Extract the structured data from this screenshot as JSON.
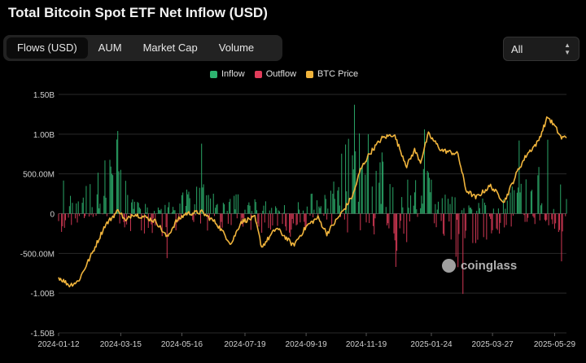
{
  "title": "Total Bitcoin Spot ETF Net Inflow (USD)",
  "tabs": [
    {
      "label": "Flows (USD)",
      "active": true
    },
    {
      "label": "AUM",
      "active": false
    },
    {
      "label": "Market Cap",
      "active": false
    },
    {
      "label": "Volume",
      "active": false
    }
  ],
  "range_select": {
    "value": "All"
  },
  "watermark": "coinglass",
  "colors": {
    "inflow": "#2db36f",
    "outflow": "#e03c5a",
    "btc_price": "#f0b43c",
    "grid": "#2a2a2a"
  },
  "chart_data": {
    "type": "bar",
    "legend": [
      {
        "name": "Inflow",
        "color": "#2db36f"
      },
      {
        "name": "Outflow",
        "color": "#e03c5a"
      },
      {
        "name": "BTC Price",
        "color": "#f0b43c"
      }
    ],
    "legend_position": "top-center",
    "y_ticks": [
      "1.50B",
      "1.00B",
      "500.00M",
      "0",
      "-500.00M",
      "-1.00B",
      "-1.50B"
    ],
    "y_tick_values": [
      1500000000,
      1000000000,
      500000000,
      0,
      -500000000,
      -1000000000,
      -1500000000
    ],
    "ylim": [
      -1500000000,
      1500000000
    ],
    "x_ticks": [
      "2024-01-12",
      "2024-03-15",
      "2024-05-16",
      "2024-07-19",
      "2024-09-19",
      "2024-11-19",
      "2025-01-24",
      "2025-03-27",
      "2025-05-29"
    ],
    "x_range": [
      "2024-01-12",
      "2025-06-10"
    ],
    "grid": true,
    "flow_knots": [
      [
        "2024-01-12",
        600000000
      ],
      [
        "2024-01-25",
        250000000
      ],
      [
        "2024-02-15",
        450000000
      ],
      [
        "2024-02-28",
        650000000
      ],
      [
        "2024-03-12",
        1000000000
      ],
      [
        "2024-03-25",
        200000000
      ],
      [
        "2024-04-05",
        150000000
      ],
      [
        "2024-04-25",
        100000000
      ],
      [
        "2024-05-15",
        250000000
      ],
      [
        "2024-05-25",
        350000000
      ],
      [
        "2024-06-05",
        850000000
      ],
      [
        "2024-06-20",
        120000000
      ],
      [
        "2024-07-15",
        300000000
      ],
      [
        "2024-07-25",
        250000000
      ],
      [
        "2024-08-10",
        150000000
      ],
      [
        "2024-09-01",
        100000000
      ],
      [
        "2024-09-20",
        300000000
      ],
      [
        "2024-10-10",
        250000000
      ],
      [
        "2024-10-25",
        800000000
      ],
      [
        "2024-11-10",
        1200000000
      ],
      [
        "2024-11-25",
        700000000
      ],
      [
        "2024-12-10",
        800000000
      ],
      [
        "2025-01-05",
        500000000
      ],
      [
        "2025-01-20",
        600000000
      ],
      [
        "2025-02-05",
        300000000
      ],
      [
        "2025-03-01",
        150000000
      ],
      [
        "2025-03-20",
        200000000
      ],
      [
        "2025-04-05",
        150000000
      ],
      [
        "2025-04-25",
        650000000
      ],
      [
        "2025-05-15",
        600000000
      ],
      [
        "2025-06-10",
        350000000
      ]
    ],
    "outflow_knots": [
      [
        "2024-01-12",
        -250000000
      ],
      [
        "2024-02-01",
        -120000000
      ],
      [
        "2024-03-01",
        -60000000
      ],
      [
        "2024-03-20",
        -250000000
      ],
      [
        "2024-04-15",
        -250000000
      ],
      [
        "2024-05-01",
        -450000000
      ],
      [
        "2024-05-20",
        -100000000
      ],
      [
        "2024-06-15",
        -250000000
      ],
      [
        "2024-07-05",
        -150000000
      ],
      [
        "2024-08-01",
        -250000000
      ],
      [
        "2024-08-20",
        -200000000
      ],
      [
        "2024-09-05",
        -300000000
      ],
      [
        "2024-10-01",
        -100000000
      ],
      [
        "2024-11-01",
        -300000000
      ],
      [
        "2024-11-20",
        -200000000
      ],
      [
        "2024-12-20",
        -500000000
      ],
      [
        "2025-01-10",
        -350000000
      ],
      [
        "2025-02-05",
        -300000000
      ],
      [
        "2025-02-25",
        -800000000
      ],
      [
        "2025-03-10",
        -400000000
      ],
      [
        "2025-04-05",
        -250000000
      ],
      [
        "2025-04-25",
        -100000000
      ],
      [
        "2025-05-15",
        -200000000
      ],
      [
        "2025-06-10",
        -300000000
      ]
    ],
    "flow_peaks": [
      [
        "2024-03-12",
        1040000000
      ],
      [
        "2024-06-05",
        880000000
      ],
      [
        "2024-11-07",
        1370000000
      ],
      [
        "2024-11-21",
        1000000000
      ],
      [
        "2024-12-05",
        770000000
      ],
      [
        "2025-01-17",
        1060000000
      ],
      [
        "2025-04-23",
        920000000
      ],
      [
        "2025-05-22",
        930000000
      ],
      [
        "2024-10-29",
        870000000
      ],
      [
        "2024-02-28",
        670000000
      ]
    ],
    "outflow_peaks": [
      [
        "2025-02-25",
        -1010000000
      ],
      [
        "2024-12-19",
        -670000000
      ],
      [
        "2024-05-01",
        -560000000
      ],
      [
        "2025-06-05",
        -600000000
      ],
      [
        "2024-09-03",
        -290000000
      ],
      [
        "2025-03-10",
        -370000000
      ],
      [
        "2024-08-05",
        -240000000
      ]
    ],
    "btc_price_points": [
      [
        "2024-01-12",
        -800000000
      ],
      [
        "2024-01-23",
        -900000000
      ],
      [
        "2024-02-01",
        -850000000
      ],
      [
        "2024-02-15",
        -500000000
      ],
      [
        "2024-02-28",
        -150000000
      ],
      [
        "2024-03-13",
        50000000
      ],
      [
        "2024-03-20",
        -100000000
      ],
      [
        "2024-03-27",
        0
      ],
      [
        "2024-04-10",
        -50000000
      ],
      [
        "2024-04-20",
        -100000000
      ],
      [
        "2024-05-01",
        -300000000
      ],
      [
        "2024-05-10",
        -100000000
      ],
      [
        "2024-05-20",
        0
      ],
      [
        "2024-06-05",
        20000000
      ],
      [
        "2024-06-20",
        -120000000
      ],
      [
        "2024-07-05",
        -380000000
      ],
      [
        "2024-07-15",
        -100000000
      ],
      [
        "2024-07-29",
        -50000000
      ],
      [
        "2024-08-05",
        -420000000
      ],
      [
        "2024-08-20",
        -180000000
      ],
      [
        "2024-09-06",
        -400000000
      ],
      [
        "2024-09-20",
        -150000000
      ],
      [
        "2024-10-01",
        -50000000
      ],
      [
        "2024-10-10",
        -250000000
      ],
      [
        "2024-10-29",
        80000000
      ],
      [
        "2024-11-06",
        250000000
      ],
      [
        "2024-11-13",
        550000000
      ],
      [
        "2024-11-22",
        750000000
      ],
      [
        "2024-12-05",
        950000000
      ],
      [
        "2024-12-17",
        1000000000
      ],
      [
        "2024-12-30",
        600000000
      ],
      [
        "2025-01-07",
        800000000
      ],
      [
        "2025-01-13",
        650000000
      ],
      [
        "2025-01-21",
        1000000000
      ],
      [
        "2025-02-03",
        800000000
      ],
      [
        "2025-02-20",
        750000000
      ],
      [
        "2025-02-28",
        300000000
      ],
      [
        "2025-03-10",
        200000000
      ],
      [
        "2025-03-25",
        350000000
      ],
      [
        "2025-04-08",
        150000000
      ],
      [
        "2025-04-22",
        550000000
      ],
      [
        "2025-05-01",
        750000000
      ],
      [
        "2025-05-12",
        900000000
      ],
      [
        "2025-05-22",
        1220000000
      ],
      [
        "2025-05-29",
        1100000000
      ],
      [
        "2025-06-05",
        950000000
      ],
      [
        "2025-06-10",
        970000000
      ]
    ]
  }
}
